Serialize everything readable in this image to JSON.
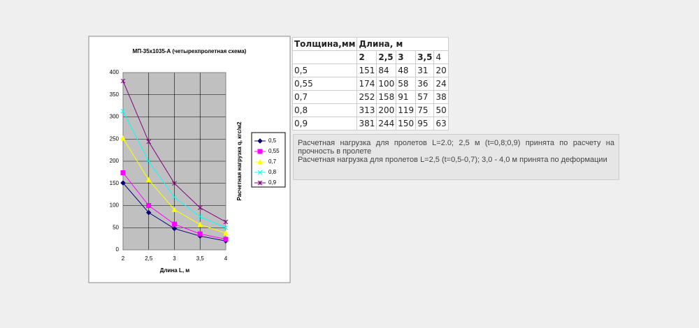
{
  "chart_data": {
    "type": "line",
    "title": "МП-35х1035-А (четырехпролетная схема)",
    "x_label": "Длина L, м",
    "y_label": "Расчетная нагрузка q, кгс/м2",
    "x": [
      2,
      2.5,
      3,
      3.5,
      4
    ],
    "xlim": [
      2,
      4
    ],
    "xticks": [
      2,
      {
        "value": 2.5,
        "label": "2,5"
      },
      3,
      {
        "value": 3.5,
        "label": "3,5"
      },
      4
    ],
    "ylim": [
      0,
      400
    ],
    "yticks": [
      0,
      50,
      100,
      150,
      200,
      250,
      300,
      350,
      400
    ],
    "grid": true,
    "legend": "right",
    "series": [
      {
        "name": "0,5",
        "color": "#000080",
        "marker": "diamond",
        "values": [
          151,
          84,
          48,
          31,
          20
        ]
      },
      {
        "name": "0,55",
        "color": "#ff00ff",
        "marker": "square",
        "values": [
          174,
          100,
          58,
          36,
          24
        ]
      },
      {
        "name": "0,7",
        "color": "#ffff00",
        "marker": "triangle",
        "values": [
          252,
          158,
          91,
          57,
          38
        ]
      },
      {
        "name": "0,8",
        "color": "#00ffff",
        "marker": "x",
        "values": [
          313,
          200,
          119,
          75,
          50
        ]
      },
      {
        "name": "0,9",
        "color": "#800080",
        "marker": "star",
        "values": [
          381,
          244,
          150,
          95,
          63
        ]
      }
    ]
  },
  "table": {
    "header": [
      "Толщина,мм",
      "Длина, м"
    ],
    "lengths": [
      "2",
      "2,5",
      "3",
      "3,5",
      "4"
    ],
    "rows": [
      [
        "0,5",
        "151",
        "84",
        "48",
        "31",
        "20"
      ],
      [
        "0,55",
        "174",
        "100",
        "58",
        "36",
        "24"
      ],
      [
        "0,7",
        "252",
        "158",
        "91",
        "57",
        "38"
      ],
      [
        "0,8",
        "313",
        "200",
        "119",
        "75",
        "50"
      ],
      [
        "0,9",
        "381",
        "244",
        "150",
        "95",
        "63"
      ]
    ]
  },
  "note": [
    "Расчетная нагрузка для пролетов L=2.0; 2,5 м (t=0,8;0,9) принята по расчету на прочность в пролете",
    "Расчетная нагрузка для пролетов L=2,5 (t=0,5-0,7); 3,0 - 4,0 м принята по деформации"
  ]
}
